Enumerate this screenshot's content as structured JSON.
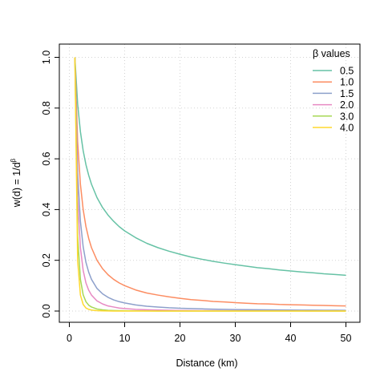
{
  "chart_data": {
    "type": "line",
    "title": "",
    "xlabel": "Distance (km)",
    "ylabel_main": "w(d) = 1/d",
    "ylabel_exponent": "β",
    "xlim": [
      0,
      50
    ],
    "ylim": [
      0,
      1
    ],
    "x_ticks": [
      0,
      10,
      20,
      30,
      40,
      50
    ],
    "x_tick_labels": [
      "0",
      "10",
      "20",
      "30",
      "40",
      "50"
    ],
    "y_ticks": [
      0.0,
      0.2,
      0.4,
      0.6,
      0.8,
      1.0
    ],
    "y_tick_labels": [
      "0.0",
      "0.2",
      "0.4",
      "0.6",
      "0.8",
      "1.0"
    ],
    "grid": true,
    "legend": {
      "title": "β values",
      "placement": "top-right"
    },
    "x": [
      1,
      1.5,
      2,
      2.5,
      3,
      3.5,
      4,
      5,
      6,
      7,
      8,
      9,
      10,
      12,
      14,
      16,
      18,
      20,
      22,
      24,
      26,
      28,
      30,
      32,
      34,
      36,
      38,
      40,
      42,
      44,
      46,
      48,
      50
    ],
    "series": [
      {
        "name": "0.5",
        "beta": 0.5,
        "color": "#66C2A5",
        "values": [
          1.0,
          0.816,
          0.707,
          0.632,
          0.577,
          0.535,
          0.5,
          0.447,
          0.408,
          0.378,
          0.354,
          0.333,
          0.316,
          0.289,
          0.267,
          0.25,
          0.236,
          0.224,
          0.213,
          0.204,
          0.196,
          0.189,
          0.183,
          0.177,
          0.171,
          0.167,
          0.162,
          0.158,
          0.154,
          0.151,
          0.147,
          0.144,
          0.141
        ]
      },
      {
        "name": "1.0",
        "beta": 1.0,
        "color": "#FC8D62",
        "values": [
          1.0,
          0.667,
          0.5,
          0.4,
          0.333,
          0.286,
          0.25,
          0.2,
          0.167,
          0.143,
          0.125,
          0.111,
          0.1,
          0.083,
          0.071,
          0.063,
          0.056,
          0.05,
          0.045,
          0.042,
          0.038,
          0.036,
          0.033,
          0.031,
          0.029,
          0.028,
          0.026,
          0.025,
          0.024,
          0.023,
          0.022,
          0.021,
          0.02
        ]
      },
      {
        "name": "1.5",
        "beta": 1.5,
        "color": "#8DA0CB",
        "values": [
          1.0,
          0.544,
          0.354,
          0.253,
          0.192,
          0.153,
          0.125,
          0.089,
          0.068,
          0.054,
          0.044,
          0.037,
          0.032,
          0.024,
          0.019,
          0.016,
          0.013,
          0.011,
          0.01,
          0.0085,
          0.0075,
          0.0067,
          0.0061,
          0.0055,
          0.005,
          0.0046,
          0.0043,
          0.004,
          0.0037,
          0.0034,
          0.0032,
          0.003,
          0.0028
        ]
      },
      {
        "name": "2.0",
        "beta": 2.0,
        "color": "#E78AC3",
        "values": [
          1.0,
          0.444,
          0.25,
          0.16,
          0.111,
          0.082,
          0.063,
          0.04,
          0.028,
          0.02,
          0.016,
          0.012,
          0.01,
          0.0069,
          0.0051,
          0.0039,
          0.0031,
          0.0025,
          0.0021,
          0.0017,
          0.0015,
          0.0013,
          0.0011,
          0.001,
          0.0009,
          0.0008,
          0.0007,
          0.0006,
          0.0006,
          0.0005,
          0.0005,
          0.0004,
          0.0004
        ]
      },
      {
        "name": "3.0",
        "beta": 3.0,
        "color": "#A6D854",
        "values": [
          1.0,
          0.296,
          0.125,
          0.064,
          0.037,
          0.023,
          0.016,
          0.008,
          0.0046,
          0.0029,
          0.002,
          0.0014,
          0.001,
          0.0006,
          0.0004,
          0.0002,
          0.0002,
          0.0001,
          0.0001,
          0.0001,
          0.0001,
          0.0,
          0.0,
          0.0,
          0.0,
          0.0,
          0.0,
          0.0,
          0.0,
          0.0,
          0.0,
          0.0,
          0.0
        ]
      },
      {
        "name": "4.0",
        "beta": 4.0,
        "color": "#FFD92F",
        "values": [
          1.0,
          0.198,
          0.063,
          0.026,
          0.012,
          0.0067,
          0.0039,
          0.0016,
          0.0008,
          0.0004,
          0.0002,
          0.0002,
          0.0001,
          0.0,
          0.0,
          0.0,
          0.0,
          0.0,
          0.0,
          0.0,
          0.0,
          0.0,
          0.0,
          0.0,
          0.0,
          0.0,
          0.0,
          0.0,
          0.0,
          0.0,
          0.0,
          0.0,
          0.0
        ]
      }
    ]
  }
}
